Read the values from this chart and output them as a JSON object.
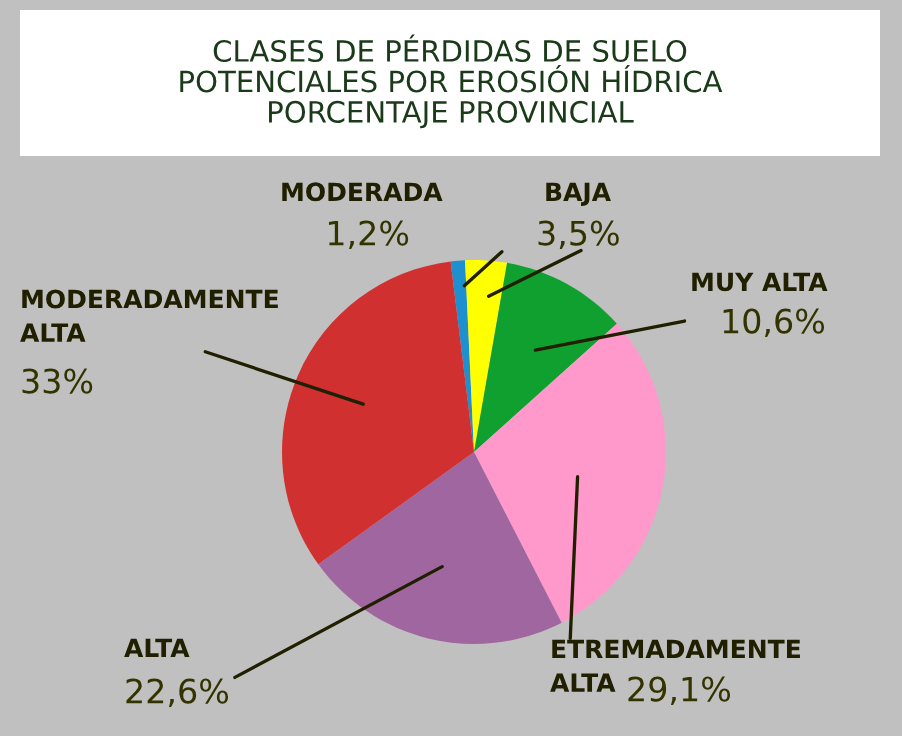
{
  "chart_data": {
    "type": "pie",
    "title": "CLASES DE PÉRDIDAS DE SUELO\nPOTENCIALES POR EROSIÓN HÍDRICA\nPORCENTAJE PROVINCIAL",
    "categories": [
      "MODERADA",
      "BAJA",
      "MUY ALTA",
      "ETREMADAMENTE\nALTA",
      "ALTA",
      "MODERADAMENTE\nALTA"
    ],
    "values": [
      1.2,
      3.5,
      10.6,
      29.1,
      22.6,
      33
    ],
    "value_labels": [
      "1,2%",
      "3,5%",
      "10,6%",
      "29,1%",
      "22,6%",
      "33%"
    ],
    "colors": [
      "#1e90d0",
      "#ffff00",
      "#10a030",
      "#ff99cc",
      "#a066a0",
      "#d03030"
    ]
  }
}
